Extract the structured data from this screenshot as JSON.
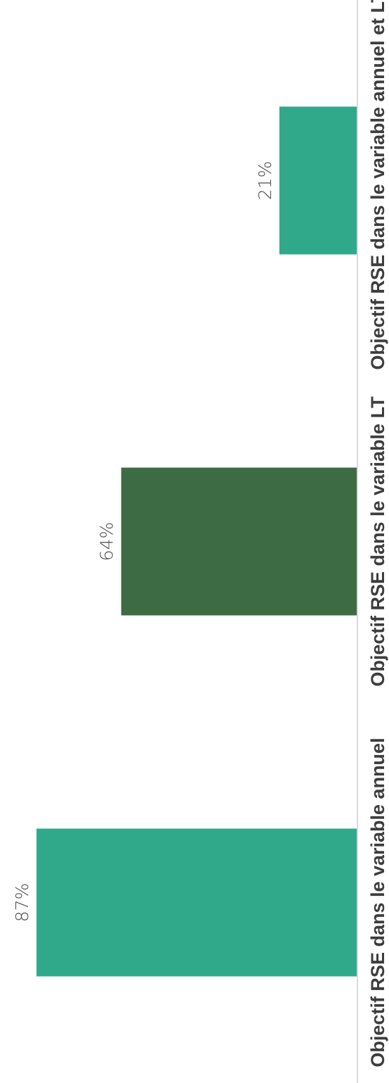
{
  "chart_data": {
    "type": "bar",
    "orientation": "horizontal",
    "categories": [
      "Objectif RSE dans le variable annuel",
      "Objectif RSE dans le variable LT",
      "Objectif RSE dans le variable annuel et LT"
    ],
    "values": [
      87,
      64,
      21
    ],
    "value_labels": [
      "87%",
      "64%",
      "21%"
    ],
    "bar_colors": [
      "#2fa989",
      "#3d6b43",
      "#2fa989"
    ],
    "xlim": [
      0,
      100
    ],
    "title": "",
    "xlabel": "",
    "ylabel": "",
    "grid": false,
    "legend": "none"
  }
}
